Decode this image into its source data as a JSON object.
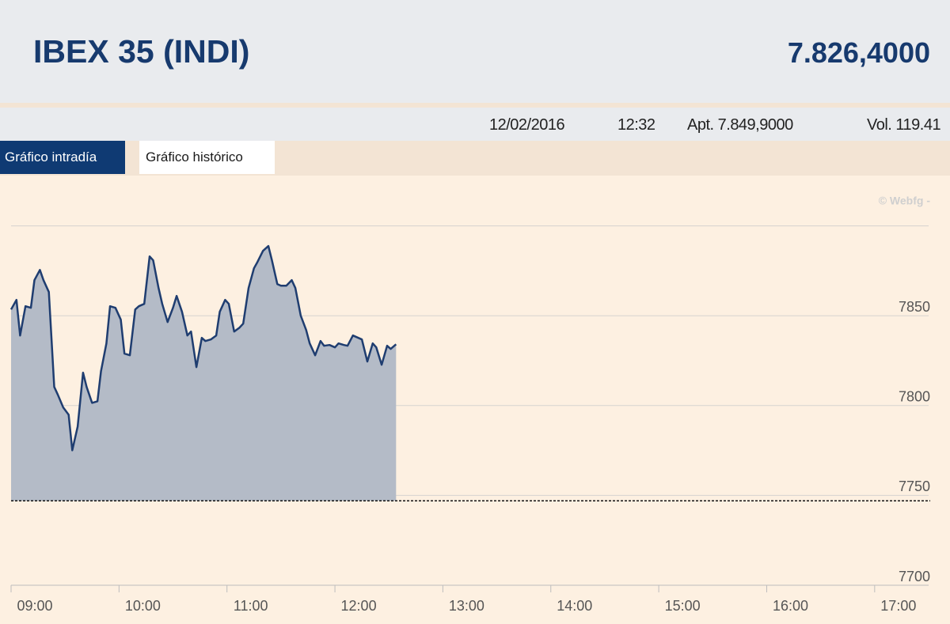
{
  "header": {
    "title": "IBEX 35 (INDI)",
    "value": "7.826,4000"
  },
  "info": {
    "date": "12/02/2016",
    "time": "12:32",
    "open": "Apt. 7.849,9000",
    "volume": "Vol. 119.41"
  },
  "tabs": [
    "Gráfico intradía",
    "Gráfico histórico"
  ],
  "active_tab": 0,
  "chart_data": {
    "type": "area",
    "watermark": "© Webfg -",
    "color": "#1f3d70",
    "fill": "#b4bbc7",
    "grid": true,
    "reference_line": 7747,
    "x": [
      "09:00",
      "09:03",
      "09:05",
      "09:08",
      "09:11",
      "09:13",
      "09:16",
      "09:18",
      "09:21",
      "09:24",
      "09:26",
      "09:29",
      "09:32",
      "09:34",
      "09:37",
      "09:40",
      "09:42",
      "09:45",
      "09:48",
      "09:50",
      "09:53",
      "09:55",
      "09:58",
      "10:01",
      "10:03",
      "10:06",
      "10:09",
      "10:11",
      "10:14",
      "10:17",
      "10:19",
      "10:22",
      "10:24",
      "10:27",
      "10:30",
      "10:32",
      "10:35",
      "10:38",
      "10:40",
      "10:43",
      "10:46",
      "10:48",
      "10:51",
      "10:54",
      "10:56",
      "10:59",
      "11:01",
      "11:04",
      "11:07",
      "11:09",
      "11:12",
      "11:15",
      "11:17",
      "11:20",
      "11:23",
      "11:25",
      "11:28",
      "11:30",
      "11:33",
      "11:36",
      "11:38",
      "11:41",
      "11:44",
      "11:46",
      "11:49",
      "11:52",
      "11:54",
      "11:57",
      "12:00",
      "12:02",
      "12:05",
      "12:07",
      "12:10",
      "12:13",
      "12:15",
      "12:18",
      "12:21",
      "12:23",
      "12:26",
      "12:29",
      "12:31",
      "12:34"
    ],
    "values": [
      7853.5,
      7858.8,
      7839,
      7855.3,
      7854.4,
      7869.8,
      7875.5,
      7869.8,
      7863.2,
      7810.4,
      7806,
      7798.9,
      7794.9,
      7775.1,
      7788.3,
      7818.3,
      7810.4,
      7801.5,
      7802.4,
      7819.2,
      7834.6,
      7855.3,
      7854.4,
      7847.8,
      7828.9,
      7828,
      7853.5,
      7855.3,
      7856.6,
      7883,
      7880.8,
      7865.4,
      7856.6,
      7846.5,
      7854.4,
      7861,
      7852.2,
      7839,
      7841.2,
      7821.4,
      7837.7,
      7835.9,
      7836.8,
      7839,
      7852.2,
      7858.8,
      7856.6,
      7841.2,
      7843.4,
      7845.6,
      7865.4,
      7876.4,
      7880,
      7886.1,
      7888.8,
      7880.8,
      7867.6,
      7866.7,
      7866.7,
      7869.8,
      7865.4,
      7850,
      7842.1,
      7834.6,
      7828,
      7835.9,
      7833.3,
      7833.7,
      7832.4,
      7834.6,
      7833.7,
      7833.3,
      7839,
      7837.7,
      7836.8,
      7824.5,
      7834.6,
      7832.4,
      7822.7,
      7833.3,
      7831.5,
      7834.1
    ],
    "xlim": [
      "09:00",
      "17:30"
    ],
    "xticks": [
      "09:00",
      "10:00",
      "11:00",
      "12:00",
      "13:00",
      "14:00",
      "15:00",
      "16:00",
      "17:00"
    ],
    "ylim": [
      7700,
      7928
    ],
    "yticks": [
      7700,
      7750,
      7800,
      7850,
      {
        "value": 7900,
        "label": null
      }
    ]
  }
}
